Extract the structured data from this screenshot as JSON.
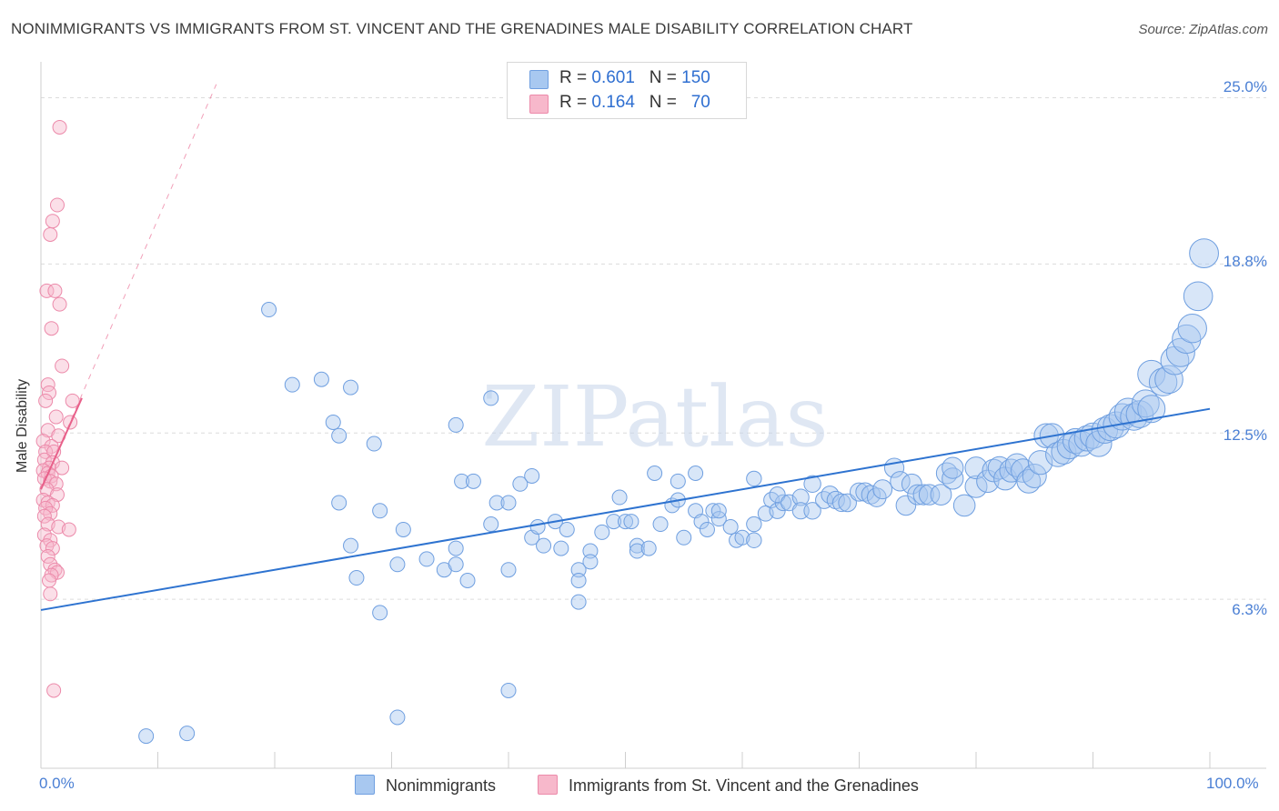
{
  "title": "NONIMMIGRANTS VS IMMIGRANTS FROM ST. VINCENT AND THE GRENADINES MALE DISABILITY CORRELATION CHART",
  "source": "Source: ZipAtlas.com",
  "watermark": "ZIPatlas",
  "legend": {
    "rows": [
      {
        "r_label": "R =",
        "r_value": "0.601",
        "n_label": "N =",
        "n_value": "150",
        "color": "#a8c8f0"
      },
      {
        "r_label": "R =",
        "r_value": "0.164",
        "n_label": "N =",
        "n_value": "70",
        "color": "#f7b8cb"
      }
    ]
  },
  "bottom_legend": [
    {
      "label": "Nonimmigrants",
      "color": "#a8c8f0"
    },
    {
      "label": "Immigrants from St. Vincent and the Grenadines",
      "color": "#f7b8cb"
    }
  ],
  "colors": {
    "blue_fill": "#a8c8f0",
    "blue_stroke": "#6f9fe0",
    "blue_line": "#2e73d0",
    "pink_fill": "#f7b8cb",
    "pink_stroke": "#ec8aaa",
    "pink_line": "#e8608a",
    "grid": "#dcdcdc",
    "tick_text": "#4a7fd4"
  },
  "chart_data": {
    "type": "scatter",
    "ylabel": "Male Disability",
    "x_tick_labels": [
      "0.0%",
      "100.0%"
    ],
    "y_tick_labels": [
      "25.0%",
      "18.8%",
      "12.5%",
      "6.3%"
    ],
    "y_tick_values": [
      25.0,
      18.8,
      12.5,
      6.3
    ],
    "xlim": [
      0,
      100
    ],
    "ylim": [
      0,
      26
    ],
    "grid": "horizontal dashed",
    "legend_position": "top-center",
    "series": [
      {
        "name": "Nonimmigrants",
        "r": 0.601,
        "n": 150,
        "trend": {
          "x": [
            0,
            100
          ],
          "y": [
            5.9,
            13.4
          ]
        },
        "points": [
          [
            9,
            1.2
          ],
          [
            12.5,
            1.3
          ],
          [
            19.5,
            17.1
          ],
          [
            21.5,
            14.3
          ],
          [
            24,
            14.5
          ],
          [
            26.5,
            14.2
          ],
          [
            25,
            12.9
          ],
          [
            25.5,
            12.4
          ],
          [
            28.5,
            12.1
          ],
          [
            25.5,
            9.9
          ],
          [
            26.5,
            8.3
          ],
          [
            27,
            7.1
          ],
          [
            29,
            9.6
          ],
          [
            29,
            5.8
          ],
          [
            30.5,
            7.6
          ],
          [
            31,
            8.9
          ],
          [
            30.5,
            1.9
          ],
          [
            33,
            7.8
          ],
          [
            34.5,
            7.4
          ],
          [
            35.5,
            8.2
          ],
          [
            35.5,
            7.6
          ],
          [
            36.5,
            7.0
          ],
          [
            35.5,
            12.8
          ],
          [
            36,
            10.7
          ],
          [
            37,
            10.7
          ],
          [
            38.5,
            9.1
          ],
          [
            38.5,
            13.8
          ],
          [
            39,
            9.9
          ],
          [
            40,
            9.9
          ],
          [
            40,
            2.9
          ],
          [
            40,
            7.4
          ],
          [
            41,
            10.6
          ],
          [
            42,
            8.6
          ],
          [
            42,
            10.9
          ],
          [
            42.5,
            9.0
          ],
          [
            43,
            8.3
          ],
          [
            44,
            9.2
          ],
          [
            44.5,
            8.2
          ],
          [
            45,
            8.9
          ],
          [
            46,
            7.4
          ],
          [
            46,
            6.2
          ],
          [
            46,
            7.0
          ],
          [
            47,
            8.1
          ],
          [
            47,
            7.7
          ],
          [
            48,
            8.8
          ],
          [
            49,
            9.2
          ],
          [
            49.5,
            10.1
          ],
          [
            50,
            9.2
          ],
          [
            50.5,
            9.2
          ],
          [
            51,
            8.3
          ],
          [
            51,
            8.1
          ],
          [
            52,
            8.2
          ],
          [
            52.5,
            11.0
          ],
          [
            53,
            9.1
          ],
          [
            54,
            9.8
          ],
          [
            54.5,
            10.0
          ],
          [
            54.5,
            10.7
          ],
          [
            55,
            8.6
          ],
          [
            56,
            11.0
          ],
          [
            56,
            9.6
          ],
          [
            56.5,
            9.2
          ],
          [
            57,
            8.9
          ],
          [
            57.5,
            9.6
          ],
          [
            58,
            9.3
          ],
          [
            58,
            9.6
          ],
          [
            59,
            9.0
          ],
          [
            59.5,
            8.5
          ],
          [
            60,
            8.6
          ],
          [
            61,
            10.8
          ],
          [
            61,
            9.1
          ],
          [
            61,
            8.5
          ],
          [
            62,
            9.5
          ],
          [
            62.5,
            10.0
          ],
          [
            63,
            9.6
          ],
          [
            63.5,
            9.9
          ],
          [
            63,
            10.2
          ],
          [
            64,
            9.9
          ],
          [
            65,
            10.1
          ],
          [
            65,
            9.6
          ],
          [
            66,
            10.6
          ],
          [
            66,
            9.6
          ],
          [
            67,
            10.0
          ],
          [
            67.5,
            10.2
          ],
          [
            68,
            10.0
          ],
          [
            68.5,
            9.9
          ],
          [
            69,
            9.9
          ],
          [
            70,
            10.3
          ],
          [
            70.5,
            10.3
          ],
          [
            71,
            10.2
          ],
          [
            71.5,
            10.1
          ],
          [
            72,
            10.4
          ],
          [
            73,
            11.2
          ],
          [
            73.5,
            10.7
          ],
          [
            74,
            9.8
          ],
          [
            74.5,
            10.6
          ],
          [
            75,
            10.2
          ],
          [
            75.5,
            10.2
          ],
          [
            76,
            10.2
          ],
          [
            77,
            10.2
          ],
          [
            77.5,
            11.0
          ],
          [
            78,
            10.8
          ],
          [
            78,
            11.2
          ],
          [
            79,
            9.8
          ],
          [
            80,
            10.5
          ],
          [
            80,
            11.2
          ],
          [
            81,
            10.7
          ],
          [
            81.5,
            11.1
          ],
          [
            82,
            11.2
          ],
          [
            82.5,
            10.8
          ],
          [
            83,
            11.1
          ],
          [
            83.5,
            11.3
          ],
          [
            84,
            11.1
          ],
          [
            84.5,
            10.7
          ],
          [
            85,
            10.9
          ],
          [
            85.5,
            11.4
          ],
          [
            86,
            12.4
          ],
          [
            86.5,
            12.4
          ],
          [
            87,
            11.7
          ],
          [
            87.5,
            11.8
          ],
          [
            88,
            12.0
          ],
          [
            88.5,
            12.2
          ],
          [
            89,
            12.1
          ],
          [
            89.5,
            12.3
          ],
          [
            90,
            12.4
          ],
          [
            90.5,
            12.1
          ],
          [
            91,
            12.6
          ],
          [
            91.5,
            12.7
          ],
          [
            92,
            12.8
          ],
          [
            92.5,
            13.1
          ],
          [
            93,
            13.3
          ],
          [
            93.5,
            13.1
          ],
          [
            94,
            13.2
          ],
          [
            94.5,
            13.6
          ],
          [
            95,
            13.4
          ],
          [
            95,
            14.7
          ],
          [
            96,
            14.4
          ],
          [
            96.5,
            14.5
          ],
          [
            97,
            15.2
          ],
          [
            97.5,
            15.5
          ],
          [
            98,
            16.0
          ],
          [
            98.5,
            16.4
          ],
          [
            99,
            17.6
          ],
          [
            99.5,
            19.2
          ]
        ]
      },
      {
        "name": "Immigrants from St. Vincent and the Grenadines",
        "r": 0.164,
        "n": 70,
        "trend": {
          "x": [
            0,
            3.5
          ],
          "y": [
            10.4,
            13.8
          ]
        },
        "trend_extended": {
          "x": [
            0,
            15
          ],
          "y": [
            10.4,
            25.5
          ]
        },
        "points": [
          [
            1.6,
            23.9
          ],
          [
            1.4,
            21.0
          ],
          [
            1.0,
            20.4
          ],
          [
            0.8,
            19.9
          ],
          [
            0.5,
            17.8
          ],
          [
            1.2,
            17.8
          ],
          [
            1.6,
            17.3
          ],
          [
            0.9,
            16.4
          ],
          [
            1.8,
            15.0
          ],
          [
            0.6,
            14.3
          ],
          [
            0.7,
            14.0
          ],
          [
            0.4,
            13.7
          ],
          [
            2.7,
            13.7
          ],
          [
            1.3,
            13.1
          ],
          [
            2.5,
            12.9
          ],
          [
            0.6,
            12.6
          ],
          [
            1.5,
            12.4
          ],
          [
            0.2,
            12.2
          ],
          [
            0.9,
            12.0
          ],
          [
            0.4,
            11.8
          ],
          [
            1.1,
            11.8
          ],
          [
            0.3,
            11.5
          ],
          [
            1.0,
            11.4
          ],
          [
            0.7,
            11.2
          ],
          [
            1.8,
            11.2
          ],
          [
            0.2,
            11.1
          ],
          [
            0.6,
            11.0
          ],
          [
            0.9,
            10.9
          ],
          [
            0.3,
            10.8
          ],
          [
            0.8,
            10.7
          ],
          [
            1.3,
            10.6
          ],
          [
            0.5,
            10.4
          ],
          [
            1.4,
            10.2
          ],
          [
            0.2,
            10.0
          ],
          [
            0.6,
            9.9
          ],
          [
            1.0,
            9.8
          ],
          [
            0.4,
            9.7
          ],
          [
            0.8,
            9.5
          ],
          [
            0.3,
            9.4
          ],
          [
            0.6,
            9.1
          ],
          [
            1.5,
            9.0
          ],
          [
            2.4,
            8.9
          ],
          [
            0.3,
            8.7
          ],
          [
            0.8,
            8.5
          ],
          [
            0.5,
            8.3
          ],
          [
            1.0,
            8.2
          ],
          [
            0.6,
            7.9
          ],
          [
            0.8,
            7.6
          ],
          [
            1.2,
            7.4
          ],
          [
            1.4,
            7.3
          ],
          [
            0.9,
            7.2
          ],
          [
            0.7,
            7.0
          ],
          [
            0.8,
            6.5
          ],
          [
            1.1,
            2.9
          ]
        ]
      }
    ]
  }
}
